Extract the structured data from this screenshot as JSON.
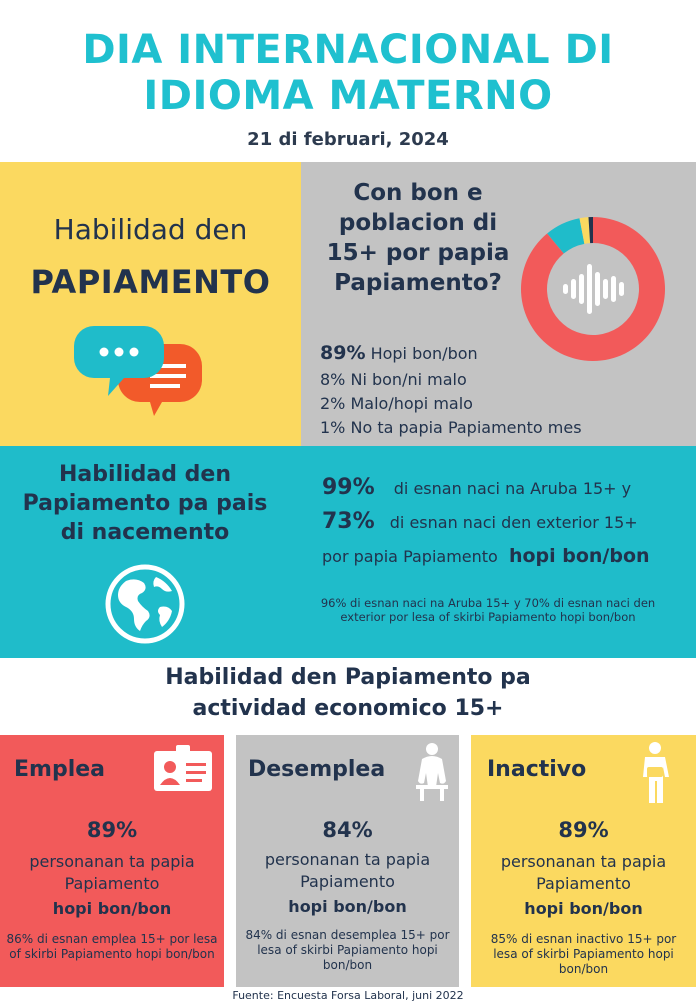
{
  "header": {
    "title_line1": "DIA INTERNACIONAL DI",
    "title_line2": "IDIOMA MATERNO",
    "date": "21 di februari,  2024"
  },
  "section_habilidad": {
    "label_line1": "Habilidad den",
    "label_line2": "PAPIAMENTO",
    "question": "Con bon e poblacion di 15+ por papia Papiamento?",
    "stats": [
      {
        "pct": "89%",
        "text": "Hopi bon/bon"
      },
      {
        "pct": "8%",
        "text": "Ni bon/ni malo"
      },
      {
        "pct": "2%",
        "text": "Malo/hopi malo"
      },
      {
        "pct": "1%",
        "text": "No ta papia Papiamento mes"
      }
    ]
  },
  "chart_data": {
    "type": "pie",
    "categories": [
      "Hopi bon/bon",
      "Ni bon/ni malo",
      "Malo/hopi malo",
      "No ta papia Papiamento mes"
    ],
    "values": [
      89,
      8,
      2,
      1
    ],
    "colors": [
      "#f25a5a",
      "#1fbcca",
      "#fbd960",
      "#22334d"
    ]
  },
  "section_nacemento": {
    "title": "Habilidad den Papiamento pa pais di nacemento",
    "pct_aruba": "99%",
    "text_aruba": "di esnan naci na Aruba 15+ y",
    "pct_exterior": "73%",
    "text_exterior": "di esnan naci den exterior 15+",
    "text_line3": "por papia Papiamento",
    "text_line3_bold": "hopi bon/bon",
    "footnote": "96% di esnan naci na Aruba 15+ y 70% di esnan naci den exterior  por lesa of skirbi Papiamento hopi bon/bon"
  },
  "section_actividad": {
    "title_line1": "Habilidad den Papiamento pa",
    "title_line2": "actividad economico 15+",
    "cards": [
      {
        "title": "Emplea",
        "pct": "89%",
        "text": "personanan  ta papia Papiamento",
        "bold": "hopi bon/bon",
        "small": "86% di esnan  emplea  15+ por lesa of skirbi Papiamento hopi bon/bon"
      },
      {
        "title": "Desemplea",
        "pct": "84%",
        "text": "personanan  ta papia Papiamento",
        "bold": "hopi bon/bon",
        "small": "84% di esnan desemplea  15+ por lesa of skirbi Papiamento hopi bon/bon"
      },
      {
        "title": "Inactivo",
        "pct": "89%",
        "text": "personanan  ta papia Papiamento",
        "bold": "hopi bon/bon",
        "small": "85% di esnan inactivo 15+ por lesa of skirbi Papiamento hopi bon/bon"
      }
    ]
  },
  "footer": {
    "source": "Fuente: Encuesta Forsa Laboral, juni 2022"
  },
  "icons": [
    "speech-bubbles-icon",
    "sound-wave-icon",
    "globe-icon",
    "id-card-icon",
    "sitting-person-icon",
    "standing-person-icon"
  ]
}
